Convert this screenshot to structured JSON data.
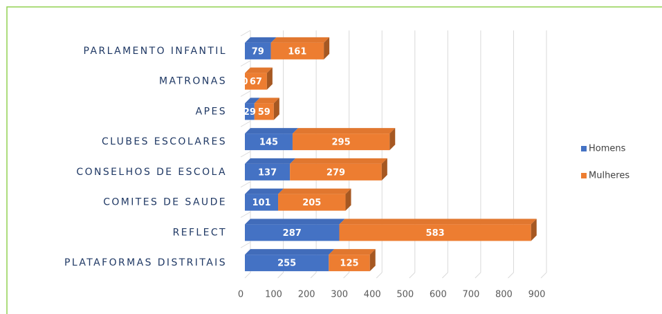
{
  "chart_data": {
    "type": "bar",
    "orientation": "horizontal",
    "stacked": true,
    "categories": [
      "PARLAMENTO INFANTIL",
      "MATRONAS",
      "APES",
      "CLUBES ESCOLARES",
      "CONSELHOS DE ESCOLA",
      "COMITES DE SAUDE",
      "REFLECT",
      "PLATAFORMAS DISTRITAIS"
    ],
    "series": [
      {
        "name": "Homens",
        "color": "#4472c4",
        "values": [
          79,
          0,
          29,
          145,
          137,
          101,
          287,
          255
        ]
      },
      {
        "name": "Mulheres",
        "color": "#ed7d31",
        "values": [
          161,
          67,
          59,
          295,
          279,
          205,
          583,
          125
        ]
      }
    ],
    "xlim": [
      0,
      900
    ],
    "xticks": [
      0,
      100,
      200,
      300,
      400,
      500,
      600,
      700,
      800,
      900
    ],
    "grid": true,
    "legend": "right"
  }
}
